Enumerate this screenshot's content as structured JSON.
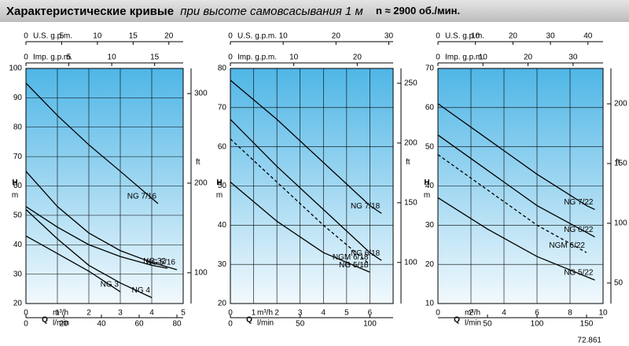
{
  "title": "Характеристические кривые",
  "title_note": "при высоте самовсасывания 1 м",
  "speed": "n ≈ 2900 об./мин.",
  "axis_labels": {
    "us": "U.S. g.p.m.",
    "imp": "Imp. g.p.m.",
    "h": "H",
    "m": "m",
    "ft": "ft",
    "q": "Q",
    "m3h": "m³/h",
    "lmin": "l/min"
  },
  "code": "72.861",
  "chart_data": [
    {
      "type": "line",
      "xlim": [
        0,
        5
      ],
      "xticks": [
        0,
        1,
        2,
        3,
        4,
        5
      ],
      "ylim": [
        20,
        100
      ],
      "yticks": [
        20,
        30,
        40,
        50,
        60,
        70,
        80,
        90,
        100
      ],
      "y2lim": [
        65.62,
        328.08
      ],
      "y2ticks": [
        100,
        200,
        300
      ],
      "lmin": {
        "lim": [
          0,
          83.33
        ],
        "ticks": [
          0,
          20,
          40,
          60,
          80
        ]
      },
      "usgpm": {
        "lim": [
          0,
          22.01
        ],
        "ticks": [
          0,
          5,
          10,
          15,
          20
        ]
      },
      "impgpm": {
        "lim": [
          0,
          18.33
        ],
        "ticks": [
          0,
          5,
          10,
          15
        ]
      },
      "grid": true,
      "series": [
        {
          "name": "NG 7/16",
          "color": "#000000",
          "dashed": false,
          "x": [
            0,
            1,
            2,
            3,
            4.2
          ],
          "values": [
            95,
            84,
            74,
            65,
            54
          ]
        },
        {
          "name": "NG 32",
          "color": "#000000",
          "dashed": false,
          "x": [
            0,
            1,
            2,
            3,
            4,
            4.5
          ],
          "values": [
            53,
            46,
            40,
            36,
            33,
            32
          ]
        },
        {
          "name": "NG 5/16",
          "color": "#000000",
          "dashed": false,
          "x": [
            0,
            1,
            2,
            3,
            4,
            4.8
          ],
          "values": [
            65,
            53,
            44,
            38,
            34,
            31.5
          ]
        },
        {
          "name": "NG 4",
          "color": "#000000",
          "dashed": false,
          "x": [
            0,
            1,
            2,
            3,
            4
          ],
          "values": [
            52,
            42,
            33,
            27,
            22
          ]
        },
        {
          "name": "NG 3",
          "color": "#000000",
          "dashed": false,
          "x": [
            0,
            1,
            2,
            3
          ],
          "values": [
            43,
            37,
            31,
            24
          ]
        }
      ]
    },
    {
      "type": "line",
      "xlim": [
        0,
        7
      ],
      "xticks": [
        0,
        1,
        2,
        3,
        4,
        5,
        6
      ],
      "ylim": [
        20,
        80
      ],
      "yticks": [
        20,
        30,
        40,
        50,
        60,
        70,
        80
      ],
      "y2lim": [
        65.62,
        262.47
      ],
      "y2ticks": [
        100,
        150,
        200,
        250
      ],
      "lmin": {
        "lim": [
          0,
          116.67
        ],
        "ticks": [
          0,
          50,
          100
        ]
      },
      "usgpm": {
        "lim": [
          0,
          30.82
        ],
        "ticks": [
          0,
          10,
          20,
          30
        ]
      },
      "impgpm": {
        "lim": [
          0,
          25.66
        ],
        "ticks": [
          0,
          10,
          20
        ]
      },
      "grid": true,
      "series": [
        {
          "name": "NG 7/18",
          "color": "#000000",
          "dashed": false,
          "x": [
            0,
            2,
            4,
            6,
            6.5
          ],
          "values": [
            77,
            67,
            56,
            45,
            43
          ]
        },
        {
          "name": "NG 6/18",
          "color": "#000000",
          "dashed": false,
          "x": [
            0,
            2,
            4,
            6,
            6.5
          ],
          "values": [
            67,
            55,
            44,
            33,
            31
          ]
        },
        {
          "name": "NGM 6/18",
          "color": "#000000",
          "dashed": true,
          "x": [
            0,
            2,
            4,
            6
          ],
          "values": [
            62,
            51,
            40,
            30
          ]
        },
        {
          "name": "NG 5/18",
          "color": "#000000",
          "dashed": false,
          "x": [
            0,
            2,
            4,
            6
          ],
          "values": [
            51,
            41,
            33,
            28
          ]
        }
      ]
    },
    {
      "type": "line",
      "xlim": [
        0,
        10
      ],
      "xticks": [
        0,
        2,
        4,
        6,
        8,
        10
      ],
      "ylim": [
        10,
        70
      ],
      "yticks": [
        10,
        20,
        30,
        40,
        50,
        60,
        70
      ],
      "y2lim": [
        32.81,
        229.66
      ],
      "y2ticks": [
        50,
        100,
        150,
        200
      ],
      "lmin": {
        "lim": [
          0,
          166.67
        ],
        "ticks": [
          50,
          100,
          150
        ]
      },
      "usgpm": {
        "lim": [
          0,
          44.03
        ],
        "ticks": [
          0,
          10,
          20,
          30,
          40
        ]
      },
      "impgpm": {
        "lim": [
          0,
          36.66
        ],
        "ticks": [
          0,
          10,
          20,
          30
        ]
      },
      "grid": true,
      "series": [
        {
          "name": "NG 7/22",
          "color": "#000000",
          "dashed": false,
          "x": [
            0,
            3,
            6,
            9,
            9.5
          ],
          "values": [
            61,
            52,
            43,
            35,
            34
          ]
        },
        {
          "name": "NG 6/22",
          "color": "#000000",
          "dashed": false,
          "x": [
            0,
            3,
            6,
            9.5
          ],
          "values": [
            53,
            44,
            35,
            27
          ]
        },
        {
          "name": "NGM 6/22",
          "color": "#000000",
          "dashed": true,
          "x": [
            0,
            3,
            6,
            9
          ],
          "values": [
            48,
            39,
            30,
            23
          ]
        },
        {
          "name": "NG 5/22",
          "color": "#000000",
          "dashed": false,
          "x": [
            0,
            3,
            6,
            9.5
          ],
          "values": [
            37,
            29,
            22,
            16
          ]
        }
      ]
    }
  ]
}
